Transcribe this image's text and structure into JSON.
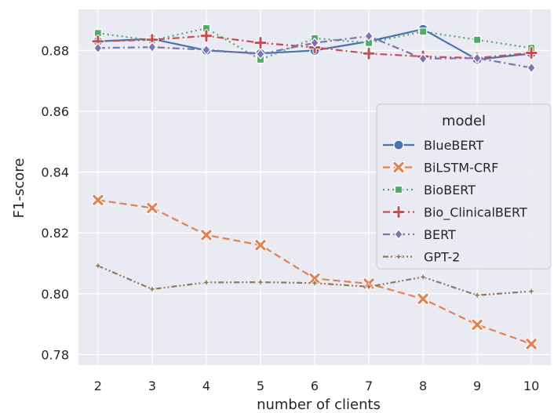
{
  "chart_data": {
    "type": "line",
    "xlabel": "number of clients",
    "ylabel": "F1-score",
    "x": [
      2,
      3,
      4,
      5,
      6,
      7,
      8,
      9,
      10
    ],
    "xlim": [
      1.64,
      10.36
    ],
    "ylim": [
      0.7765,
      0.8935
    ],
    "yticks": [
      0.78,
      0.8,
      0.82,
      0.84,
      0.86,
      0.88
    ],
    "ytick_labels": [
      "0.78",
      "0.80",
      "0.82",
      "0.84",
      "0.86",
      "0.88"
    ],
    "xtick_labels": [
      "2",
      "3",
      "4",
      "5",
      "6",
      "7",
      "8",
      "9",
      "10"
    ],
    "grid": true,
    "legend": {
      "title": "model",
      "placement": "center-right"
    },
    "series": [
      {
        "name": "BlueBERT",
        "color": "#4c72b0",
        "marker": "circle",
        "dash": "solid",
        "values": [
          0.883,
          0.8838,
          0.88,
          0.879,
          0.88,
          0.883,
          0.887,
          0.877,
          0.879
        ]
      },
      {
        "name": "BiLSTM-CRF",
        "color": "#dd8452",
        "marker": "x",
        "dash": "dashed",
        "values": [
          0.8308,
          0.8282,
          0.8193,
          0.816,
          0.805,
          0.8033,
          0.7983,
          0.7898,
          0.7835
        ]
      },
      {
        "name": "BioBERT",
        "color": "#55a868",
        "marker": "square",
        "dash": "dotted",
        "values": [
          0.8857,
          0.8833,
          0.8873,
          0.877,
          0.884,
          0.8825,
          0.8862,
          0.8835,
          0.8808
        ]
      },
      {
        "name": "Bio_ClinicalBERT",
        "color": "#c44e52",
        "marker": "plus",
        "dash": "dashdot",
        "values": [
          0.883,
          0.8835,
          0.8848,
          0.8825,
          0.881,
          0.879,
          0.878,
          0.8775,
          0.8792
        ]
      },
      {
        "name": "BERT",
        "color": "#8172b3",
        "marker": "diamond",
        "dash": "dashdot",
        "values": [
          0.8808,
          0.8811,
          0.8802,
          0.8788,
          0.8825,
          0.8847,
          0.8773,
          0.8775,
          0.8743
        ]
      },
      {
        "name": "GPT-2",
        "color": "#937860",
        "marker": "star",
        "dash": "dashdotdot",
        "values": [
          0.8092,
          0.8015,
          0.8037,
          0.8038,
          0.8035,
          0.8023,
          0.8055,
          0.7995,
          0.8008
        ]
      }
    ]
  }
}
